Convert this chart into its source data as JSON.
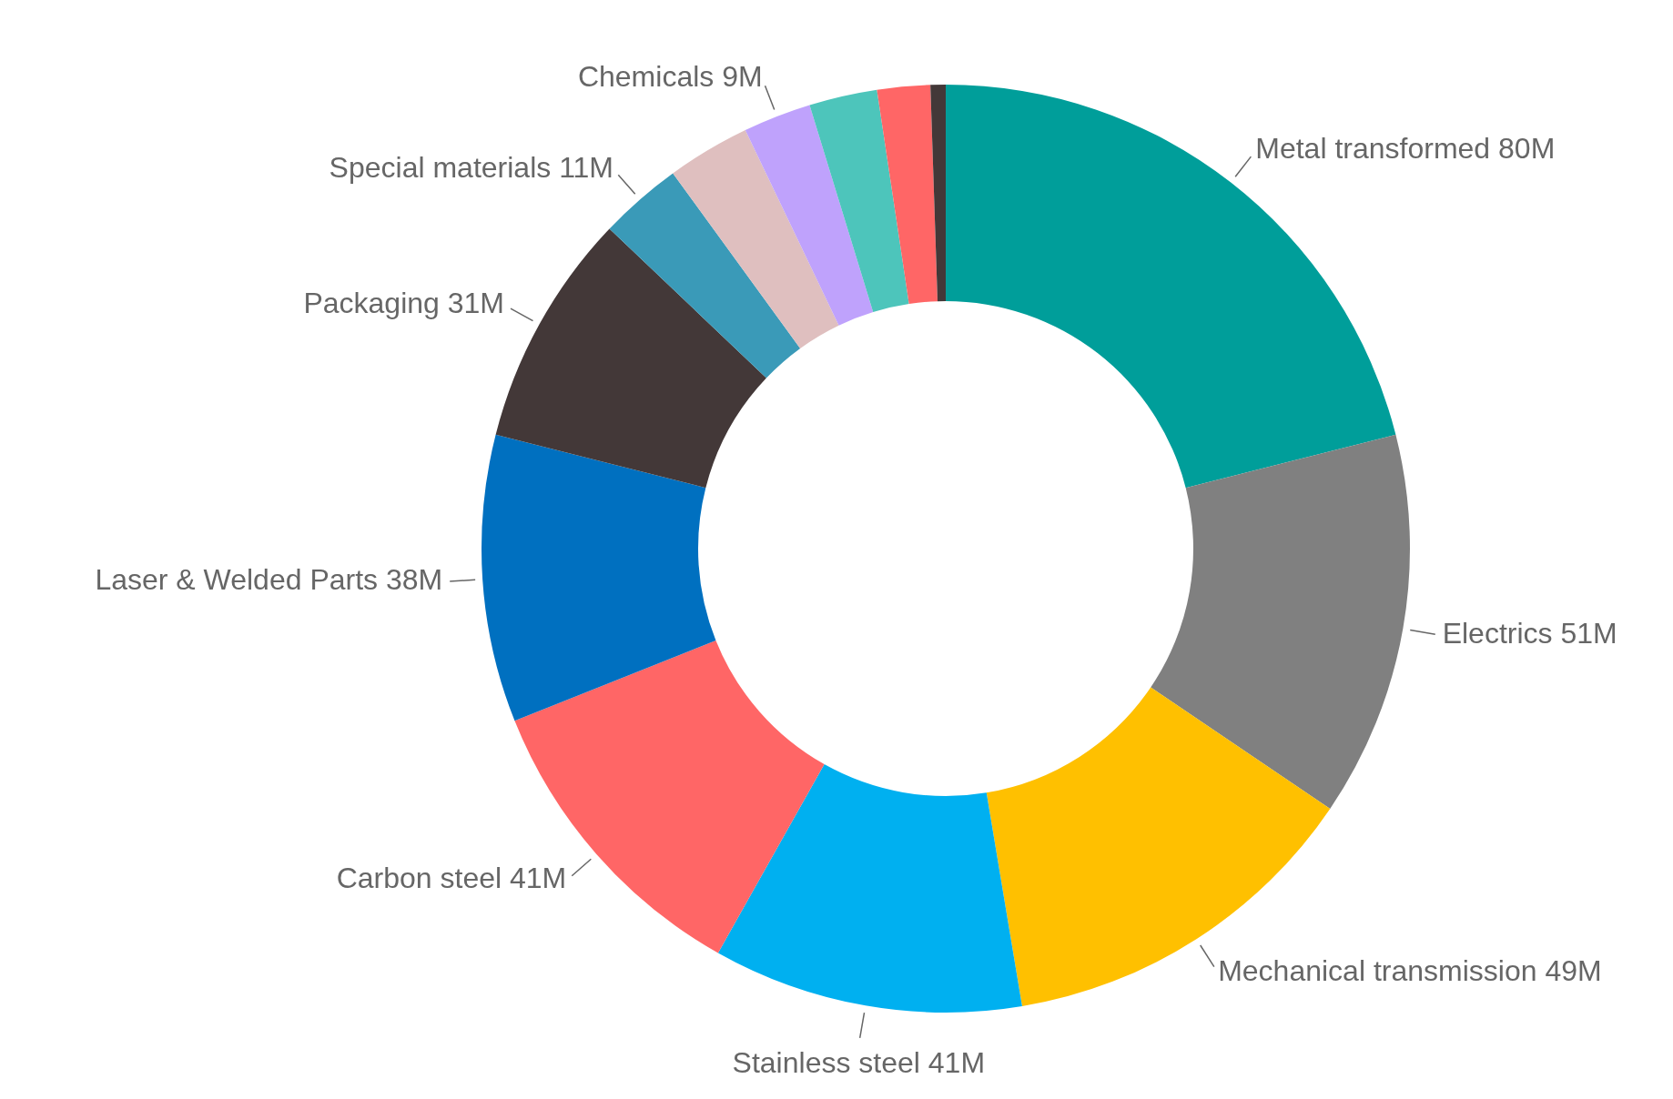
{
  "chart_data": {
    "type": "donut",
    "categories": [
      "Metal transformed",
      "Electrics",
      "Mechanical transmission",
      "Stainless steel",
      "Carbon steel",
      "Laser & Welded Parts",
      "Packaging",
      "Special materials",
      null,
      "Chemicals",
      null,
      null,
      null
    ],
    "values": [
      80,
      51,
      49,
      41,
      41,
      38,
      31,
      11,
      11,
      9,
      9,
      7,
      2
    ],
    "value_labels": [
      "80M",
      "51M",
      "49M",
      "41M",
      "41M",
      "38M",
      "31M",
      "11M",
      null,
      "9M",
      null,
      null,
      null
    ],
    "colors": [
      "#009e9a",
      "#808080",
      "#ffc000",
      "#00b0f0",
      "#ff6666",
      "#0070c0",
      "#433838",
      "#3a9ab8",
      "#dfbfbf",
      "#bfa2fc",
      "#4dc5bb",
      "#ff6666",
      "#433838"
    ]
  }
}
